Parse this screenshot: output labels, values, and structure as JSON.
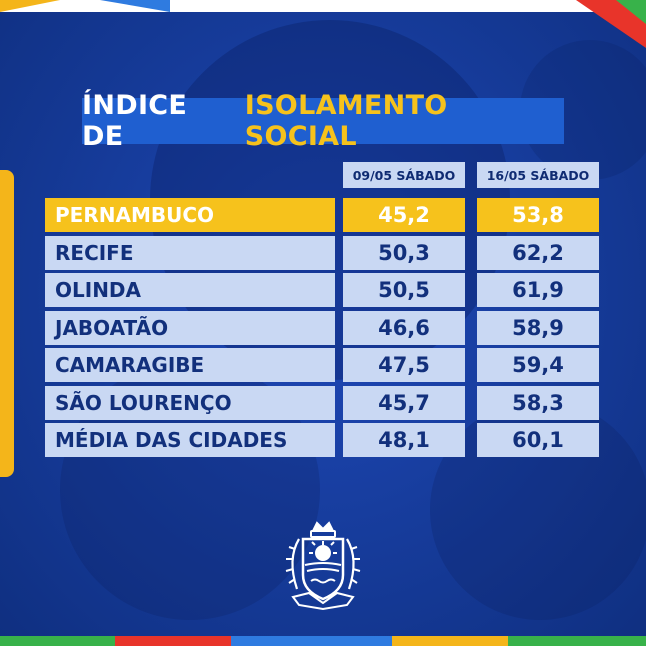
{
  "title": {
    "part1": "ÍNDICE DE",
    "part2": "ISOLAMENTO SOCIAL"
  },
  "columns": [
    "09/05 SÁBADO",
    "16/05 SÁBADO"
  ],
  "rows": [
    {
      "name": "PERNAMBUCO",
      "v1": "45,2",
      "v2": "53,8",
      "highlight": true
    },
    {
      "name": "RECIFE",
      "v1": "50,3",
      "v2": "62,2"
    },
    {
      "name": "OLINDA",
      "v1": "50,5",
      "v2": "61,9"
    },
    {
      "name": "JABOATÃO",
      "v1": "46,6",
      "v2": "58,9"
    },
    {
      "name": "CAMARAGIBE",
      "v1": "47,5",
      "v2": "59,4"
    },
    {
      "name": "SÃO LOURENÇO",
      "v1": "45,7",
      "v2": "58,3"
    },
    {
      "name": "MÉDIA DAS CIDADES",
      "v1": "48,1",
      "v2": "60,1"
    }
  ],
  "colors": {
    "background": "#173d9e",
    "highlight": "#f6c21c",
    "cell": "#c9d8f3",
    "cell_text": "#12307c",
    "title_box": "#1f5fd0"
  },
  "emblem": {
    "icon": "pernambuco-coat-of-arms-icon"
  }
}
